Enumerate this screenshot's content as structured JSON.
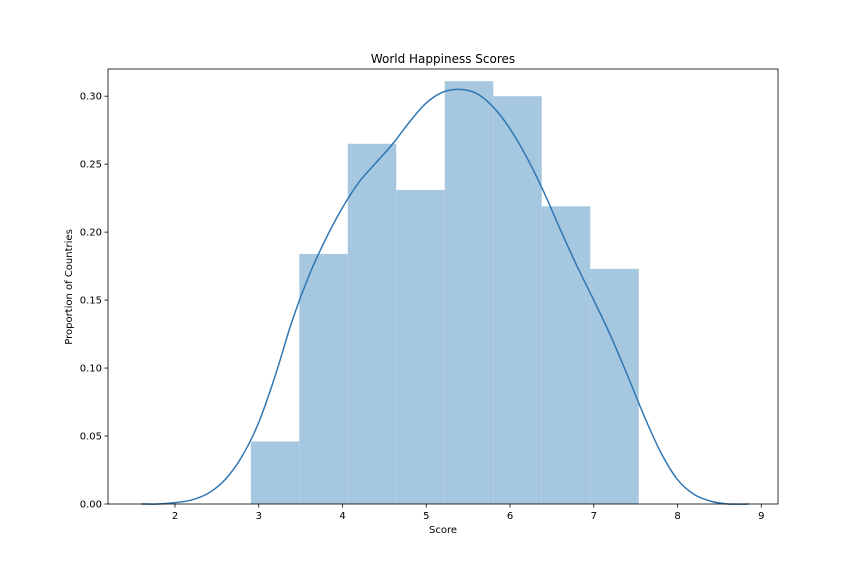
{
  "chart_data": {
    "type": "bar",
    "title": "World Happiness Scores",
    "xlabel": "Score",
    "ylabel": "Proportion of Countries",
    "xlim": [
      1.2,
      9.2
    ],
    "ylim": [
      0,
      0.32
    ],
    "xticks": [
      2,
      3,
      4,
      5,
      6,
      7,
      8,
      9
    ],
    "yticks": [
      0.0,
      0.05,
      0.1,
      0.15,
      0.2,
      0.25,
      0.3
    ],
    "ytick_labels": [
      "0.00",
      "0.05",
      "0.10",
      "0.15",
      "0.20",
      "0.25",
      "0.30"
    ],
    "grid": false,
    "legend": "none",
    "bar_color": "#a6c7e0",
    "line_color": "#2f77b4",
    "histogram": {
      "bin_edges": [
        2.905,
        3.484,
        4.063,
        4.642,
        5.221,
        5.8,
        6.379,
        6.958,
        7.537
      ],
      "values": [
        0.046,
        0.184,
        0.265,
        0.231,
        0.311,
        0.3,
        0.219,
        0.173
      ]
    },
    "kde": {
      "x": [
        1.6,
        1.8,
        2.0,
        2.2,
        2.4,
        2.6,
        2.8,
        3.0,
        3.2,
        3.4,
        3.6,
        3.8,
        4.0,
        4.2,
        4.4,
        4.6,
        4.8,
        5.0,
        5.2,
        5.4,
        5.6,
        5.8,
        6.0,
        6.2,
        6.4,
        6.6,
        6.8,
        7.0,
        7.2,
        7.4,
        7.6,
        7.8,
        8.0,
        8.2,
        8.4,
        8.6,
        8.85
      ],
      "y": [
        0.0,
        0.0,
        0.001,
        0.003,
        0.008,
        0.018,
        0.035,
        0.06,
        0.095,
        0.135,
        0.168,
        0.195,
        0.218,
        0.237,
        0.251,
        0.265,
        0.281,
        0.295,
        0.303,
        0.305,
        0.302,
        0.292,
        0.276,
        0.255,
        0.23,
        0.202,
        0.175,
        0.15,
        0.124,
        0.095,
        0.065,
        0.038,
        0.018,
        0.007,
        0.002,
        0.0,
        0.0
      ]
    }
  }
}
